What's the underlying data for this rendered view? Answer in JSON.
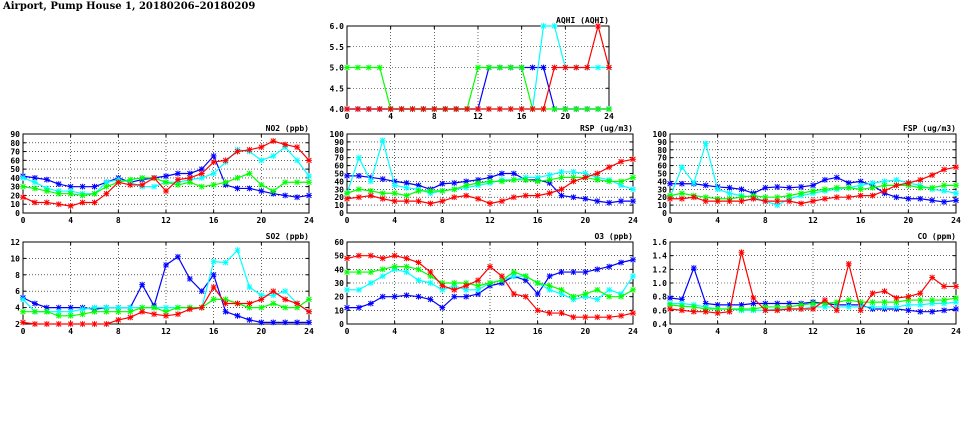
{
  "page_title": "Airport, Pump House 1, 20180206–20180209",
  "colors": {
    "series": [
      "#0000ff",
      "#00ffff",
      "#00ff00",
      "#ff0000"
    ]
  },
  "chart_data": [
    {
      "id": "aqhi",
      "type": "line",
      "title": "AQHI (AQHI)",
      "x_ticks": [
        0,
        4,
        8,
        12,
        16,
        20,
        24
      ],
      "xlim": [
        0,
        24
      ],
      "ylim": [
        4.0,
        6.0
      ],
      "y_ticks": [
        4.0,
        4.5,
        5.0,
        5.5,
        6.0
      ],
      "y_tick_labels": [
        "4.0",
        "4.5",
        "5.0",
        "5.5",
        "6.0"
      ],
      "grid": true,
      "series": [
        {
          "color": "#0000ff",
          "values": [
            4,
            4,
            4,
            4,
            4,
            4,
            4,
            4,
            4,
            4,
            4,
            4,
            4,
            5,
            5,
            5,
            5,
            5,
            5,
            4,
            4,
            4,
            4,
            4,
            4
          ]
        },
        {
          "color": "#00ffff",
          "values": [
            4,
            4,
            4,
            4,
            4,
            4,
            4,
            4,
            4,
            4,
            4,
            4,
            4,
            4,
            4,
            4,
            4,
            4,
            6,
            6,
            5,
            5,
            5,
            5,
            5
          ]
        },
        {
          "color": "#00ff00",
          "values": [
            5,
            5,
            5,
            5,
            4,
            4,
            4,
            4,
            4,
            4,
            4,
            4,
            5,
            5,
            5,
            5,
            5,
            4,
            4,
            4,
            4,
            4,
            4,
            4,
            4
          ]
        },
        {
          "color": "#ff0000",
          "values": [
            4,
            4,
            4,
            4,
            4,
            4,
            4,
            4,
            4,
            4,
            4,
            4,
            4,
            4,
            4,
            4,
            4,
            4,
            4,
            5,
            5,
            5,
            5,
            6,
            5
          ]
        }
      ]
    },
    {
      "id": "no2",
      "type": "line",
      "title": "NO2 (ppb)",
      "x_ticks": [
        0,
        4,
        8,
        12,
        16,
        20,
        24
      ],
      "xlim": [
        0,
        24
      ],
      "ylim": [
        0,
        90
      ],
      "y_ticks": [
        0,
        10,
        20,
        30,
        40,
        50,
        60,
        70,
        80,
        90
      ],
      "y_tick_labels": [
        "0",
        "10",
        "20",
        "30",
        "40",
        "50",
        "60",
        "70",
        "80",
        "90"
      ],
      "grid": true,
      "series": [
        {
          "color": "#0000ff",
          "values": [
            42,
            40,
            38,
            33,
            30,
            30,
            30,
            35,
            40,
            35,
            38,
            40,
            42,
            45,
            45,
            50,
            65,
            32,
            28,
            28,
            25,
            22,
            20,
            18,
            20
          ]
        },
        {
          "color": "#00ffff",
          "values": [
            40,
            35,
            28,
            25,
            25,
            22,
            22,
            35,
            38,
            35,
            30,
            30,
            35,
            35,
            38,
            40,
            45,
            58,
            72,
            70,
            60,
            65,
            75,
            60,
            42
          ]
        },
        {
          "color": "#00ff00",
          "values": [
            30,
            28,
            25,
            22,
            22,
            20,
            22,
            30,
            35,
            38,
            40,
            40,
            35,
            32,
            35,
            30,
            32,
            35,
            40,
            45,
            32,
            25,
            35,
            35,
            35
          ]
        },
        {
          "color": "#ff0000",
          "values": [
            18,
            12,
            12,
            10,
            8,
            12,
            12,
            22,
            35,
            32,
            32,
            40,
            25,
            38,
            40,
            45,
            58,
            60,
            70,
            72,
            75,
            82,
            78,
            75,
            60
          ]
        }
      ]
    },
    {
      "id": "rsp",
      "type": "line",
      "title": "RSP (ug/m3)",
      "x_ticks": [
        0,
        4,
        8,
        12,
        16,
        20,
        24
      ],
      "xlim": [
        0,
        24
      ],
      "ylim": [
        0,
        100
      ],
      "y_ticks": [
        0,
        10,
        20,
        30,
        40,
        50,
        60,
        70,
        80,
        90,
        100
      ],
      "y_tick_labels": [
        "0",
        "10",
        "20",
        "30",
        "40",
        "50",
        "60",
        "70",
        "80",
        "90",
        "100"
      ],
      "grid": true,
      "series": [
        {
          "color": "#0000ff",
          "values": [
            47,
            47,
            45,
            43,
            40,
            38,
            35,
            30,
            37,
            38,
            40,
            42,
            45,
            50,
            50,
            42,
            42,
            38,
            22,
            20,
            18,
            15,
            13,
            15,
            15
          ]
        },
        {
          "color": "#00ffff",
          "values": [
            25,
            70,
            40,
            92,
            35,
            32,
            30,
            25,
            28,
            30,
            32,
            35,
            38,
            42,
            42,
            45,
            45,
            48,
            52,
            52,
            50,
            45,
            42,
            35,
            30
          ]
        },
        {
          "color": "#00ff00",
          "values": [
            25,
            30,
            28,
            25,
            25,
            22,
            28,
            28,
            28,
            30,
            35,
            38,
            40,
            40,
            42,
            42,
            40,
            42,
            45,
            45,
            45,
            42,
            40,
            40,
            45
          ]
        },
        {
          "color": "#ff0000",
          "values": [
            18,
            20,
            22,
            18,
            15,
            15,
            15,
            12,
            15,
            20,
            22,
            18,
            12,
            15,
            20,
            22,
            22,
            25,
            30,
            40,
            45,
            50,
            58,
            65,
            68
          ]
        }
      ]
    },
    {
      "id": "fsp",
      "type": "line",
      "title": "FSP (ug/m3)",
      "x_ticks": [
        0,
        4,
        8,
        12,
        16,
        20,
        24
      ],
      "xlim": [
        0,
        24
      ],
      "ylim": [
        0,
        100
      ],
      "y_ticks": [
        0,
        10,
        20,
        30,
        40,
        50,
        60,
        70,
        80,
        90,
        100
      ],
      "y_tick_labels": [
        "0",
        "10",
        "20",
        "30",
        "40",
        "50",
        "60",
        "70",
        "80",
        "90",
        "100"
      ],
      "grid": true,
      "series": [
        {
          "color": "#0000ff",
          "values": [
            37,
            37,
            37,
            35,
            33,
            32,
            30,
            25,
            32,
            33,
            32,
            33,
            35,
            42,
            45,
            38,
            40,
            35,
            25,
            20,
            18,
            18,
            16,
            14,
            16
          ]
        },
        {
          "color": "#00ffff",
          "values": [
            20,
            58,
            38,
            88,
            30,
            25,
            22,
            20,
            15,
            10,
            18,
            22,
            25,
            28,
            30,
            32,
            35,
            38,
            40,
            42,
            38,
            35,
            30,
            28,
            25
          ]
        },
        {
          "color": "#00ff00",
          "values": [
            22,
            25,
            22,
            20,
            18,
            18,
            20,
            22,
            20,
            20,
            22,
            25,
            28,
            30,
            32,
            32,
            30,
            32,
            35,
            35,
            35,
            32,
            32,
            35,
            35
          ]
        },
        {
          "color": "#ff0000",
          "values": [
            18,
            18,
            20,
            15,
            15,
            15,
            15,
            18,
            15,
            15,
            15,
            12,
            15,
            18,
            20,
            20,
            22,
            22,
            28,
            35,
            38,
            42,
            48,
            55,
            58
          ]
        }
      ]
    },
    {
      "id": "so2",
      "type": "line",
      "title": "SO2 (ppb)",
      "x_ticks": [
        0,
        4,
        8,
        12,
        16,
        20,
        24
      ],
      "xlim": [
        0,
        24
      ],
      "ylim": [
        2,
        12
      ],
      "y_ticks": [
        2,
        4,
        6,
        8,
        10,
        12
      ],
      "y_tick_labels": [
        "2",
        "4",
        "6",
        "8",
        "10",
        "12"
      ],
      "grid": true,
      "series": [
        {
          "color": "#0000ff",
          "values": [
            5.2,
            4.5,
            4,
            4,
            4,
            4,
            3.8,
            4,
            4,
            4,
            6.8,
            4.2,
            9.2,
            10.2,
            7.5,
            6,
            8,
            3.5,
            3,
            2.5,
            2.2,
            2.2,
            2.2,
            2.2,
            2.2
          ]
        },
        {
          "color": "#00ffff",
          "values": [
            5,
            3.5,
            3.5,
            3.5,
            3.5,
            3.8,
            4,
            4,
            4,
            4,
            4,
            4,
            4,
            4,
            4,
            4,
            9.6,
            9.5,
            11,
            6.5,
            5.5,
            5.5,
            6,
            4.5,
            3.5
          ]
        },
        {
          "color": "#00ff00",
          "values": [
            3.5,
            3.5,
            3.5,
            3,
            3,
            3.2,
            3.5,
            3.5,
            3.5,
            3.5,
            4,
            4,
            3.5,
            4,
            4,
            4,
            5,
            5,
            4.5,
            4,
            4,
            4.5,
            4,
            4,
            5
          ]
        },
        {
          "color": "#ff0000",
          "values": [
            2.2,
            2,
            2,
            2,
            2,
            2,
            2,
            2,
            2.5,
            2.8,
            3.5,
            3.2,
            3,
            3.2,
            3.8,
            4,
            6.5,
            4.5,
            4.5,
            4.5,
            5,
            6,
            5,
            4.5,
            3.5
          ]
        }
      ]
    },
    {
      "id": "o3",
      "type": "line",
      "title": "O3 (ppb)",
      "x_ticks": [
        0,
        4,
        8,
        12,
        16,
        20,
        24
      ],
      "xlim": [
        0,
        24
      ],
      "ylim": [
        0,
        60
      ],
      "y_ticks": [
        0,
        10,
        20,
        30,
        40,
        50,
        60
      ],
      "y_tick_labels": [
        "0",
        "10",
        "20",
        "30",
        "40",
        "50",
        "60"
      ],
      "grid": true,
      "series": [
        {
          "color": "#0000ff",
          "values": [
            12,
            12,
            15,
            20,
            20,
            21,
            20,
            18,
            12,
            20,
            20,
            22,
            28,
            30,
            35,
            32,
            22,
            35,
            38,
            38,
            38,
            40,
            42,
            45,
            47
          ]
        },
        {
          "color": "#00ffff",
          "values": [
            25,
            25,
            30,
            35,
            40,
            38,
            32,
            30,
            25,
            28,
            25,
            25,
            30,
            32,
            35,
            35,
            30,
            25,
            22,
            18,
            20,
            18,
            25,
            22,
            35
          ]
        },
        {
          "color": "#00ff00",
          "values": [
            38,
            38,
            38,
            40,
            42,
            42,
            40,
            35,
            30,
            30,
            30,
            28,
            30,
            32,
            38,
            35,
            30,
            28,
            25,
            20,
            22,
            25,
            20,
            20,
            25
          ]
        },
        {
          "color": "#ff0000",
          "values": [
            48,
            50,
            50,
            48,
            50,
            48,
            45,
            38,
            28,
            25,
            28,
            32,
            42,
            35,
            22,
            20,
            10,
            8,
            8,
            5,
            5,
            5,
            5,
            6,
            8
          ]
        }
      ]
    },
    {
      "id": "co",
      "type": "line",
      "title": "CO (ppm)",
      "x_ticks": [
        0,
        4,
        8,
        12,
        16,
        20,
        24
      ],
      "xlim": [
        0,
        24
      ],
      "ylim": [
        0.4,
        1.6
      ],
      "y_ticks": [
        0.4,
        0.6,
        0.8,
        1.0,
        1.2,
        1.4,
        1.6
      ],
      "y_tick_labels": [
        "0.4",
        "0.6",
        "0.8",
        "1.0",
        "1.2",
        "1.4",
        "1.6"
      ],
      "grid": true,
      "series": [
        {
          "color": "#0000ff",
          "values": [
            0.78,
            0.76,
            1.22,
            0.7,
            0.68,
            0.68,
            0.68,
            0.7,
            0.7,
            0.7,
            0.7,
            0.7,
            0.72,
            0.7,
            0.68,
            0.68,
            0.68,
            0.62,
            0.62,
            0.62,
            0.6,
            0.58,
            0.58,
            0.6,
            0.62
          ]
        },
        {
          "color": "#00ffff",
          "values": [
            0.7,
            0.7,
            0.68,
            0.65,
            0.62,
            0.62,
            0.6,
            0.6,
            0.6,
            0.62,
            0.62,
            0.62,
            0.65,
            0.65,
            0.65,
            0.65,
            0.65,
            0.65,
            0.65,
            0.65,
            0.68,
            0.68,
            0.7,
            0.7,
            0.72
          ]
        },
        {
          "color": "#00ff00",
          "values": [
            0.68,
            0.66,
            0.65,
            0.62,
            0.62,
            0.62,
            0.62,
            0.62,
            0.65,
            0.65,
            0.65,
            0.68,
            0.7,
            0.7,
            0.72,
            0.75,
            0.72,
            0.72,
            0.72,
            0.72,
            0.75,
            0.75,
            0.75,
            0.75,
            0.78
          ]
        },
        {
          "color": "#ff0000",
          "values": [
            0.62,
            0.6,
            0.58,
            0.58,
            0.56,
            0.58,
            1.45,
            0.78,
            0.6,
            0.6,
            0.62,
            0.62,
            0.62,
            0.75,
            0.6,
            1.28,
            0.6,
            0.85,
            0.88,
            0.78,
            0.8,
            0.85,
            1.08,
            0.95,
            0.95
          ]
        }
      ]
    }
  ]
}
